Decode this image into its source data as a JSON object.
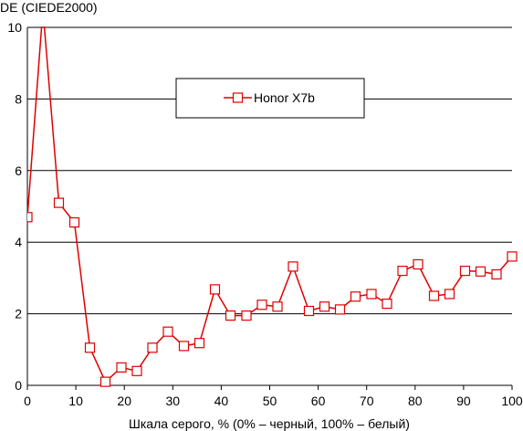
{
  "chart_data": {
    "type": "line",
    "ylabel": "DE (CIEDE2000)",
    "xlabel": "Шкала серого, % (0% – черный, 100% – белый)",
    "xlim": [
      0,
      100
    ],
    "ylim": [
      0,
      10
    ],
    "x_ticks": [
      "0",
      "10",
      "20",
      "30",
      "40",
      "50",
      "60",
      "70",
      "80",
      "90",
      "100"
    ],
    "y_ticks": [
      "0",
      "2",
      "4",
      "6",
      "8",
      "10"
    ],
    "grid": "horizontal",
    "legend_position": "top-center",
    "series": [
      {
        "name": "Honor X7b",
        "color": "#e00000",
        "marker": "square",
        "x": [
          0,
          3.2,
          6.5,
          9.7,
          12.9,
          16.1,
          19.4,
          22.6,
          25.8,
          29.0,
          32.3,
          35.5,
          38.7,
          41.9,
          45.2,
          48.4,
          51.6,
          54.8,
          58.1,
          61.3,
          64.5,
          67.7,
          71.0,
          74.2,
          77.4,
          80.6,
          83.9,
          87.1,
          90.3,
          93.5,
          96.8,
          100
        ],
        "y": [
          4.7,
          10.5,
          5.1,
          4.55,
          1.05,
          0.1,
          0.5,
          0.4,
          1.05,
          1.5,
          1.1,
          1.18,
          2.68,
          1.95,
          1.95,
          2.25,
          2.2,
          3.32,
          2.08,
          2.2,
          2.12,
          2.48,
          2.55,
          2.28,
          3.2,
          3.38,
          2.5,
          2.55,
          3.2,
          3.18,
          3.1,
          3.6
        ]
      }
    ]
  }
}
